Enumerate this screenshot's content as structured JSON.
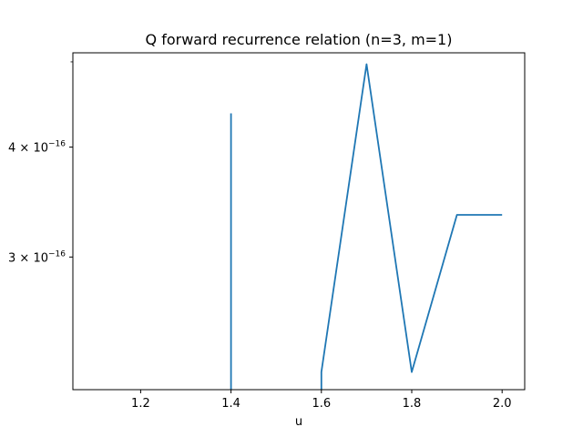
{
  "chart_data": {
    "type": "line",
    "title": "Q forward recurrence relation (n=3, m=1)",
    "xlabel": "u",
    "ylabel": "",
    "xlim": [
      1.05,
      2.05
    ],
    "ylim": [
      2.12e-16,
      5.12e-16
    ],
    "x_ticks": [
      {
        "value": 1.2,
        "label": "1.2"
      },
      {
        "value": 1.4,
        "label": "1.4"
      },
      {
        "value": 1.6,
        "label": "1.6"
      },
      {
        "value": 1.8,
        "label": "1.8"
      },
      {
        "value": 2.0,
        "label": "2.0"
      }
    ],
    "y_ticks": [
      {
        "value": 3e-16,
        "base": "3",
        "exp": "−16"
      },
      {
        "value": 4e-16,
        "base": "4",
        "exp": "−16"
      }
    ],
    "y_minor_ticks": [
      5e-16
    ],
    "grid": false,
    "series": [
      {
        "name": "",
        "color": "#1f77b4",
        "segments": [
          [
            [
              1.4,
              2.12e-16
            ],
            [
              1.4,
              4.37e-16
            ]
          ],
          [
            [
              1.6,
              2.12e-16
            ],
            [
              1.6,
              2.22e-16
            ],
            [
              1.7,
              4.97e-16
            ],
            [
              1.8,
              2.22e-16
            ],
            [
              1.9,
              3.35e-16
            ],
            [
              2.0,
              3.35e-16
            ]
          ]
        ]
      }
    ]
  }
}
